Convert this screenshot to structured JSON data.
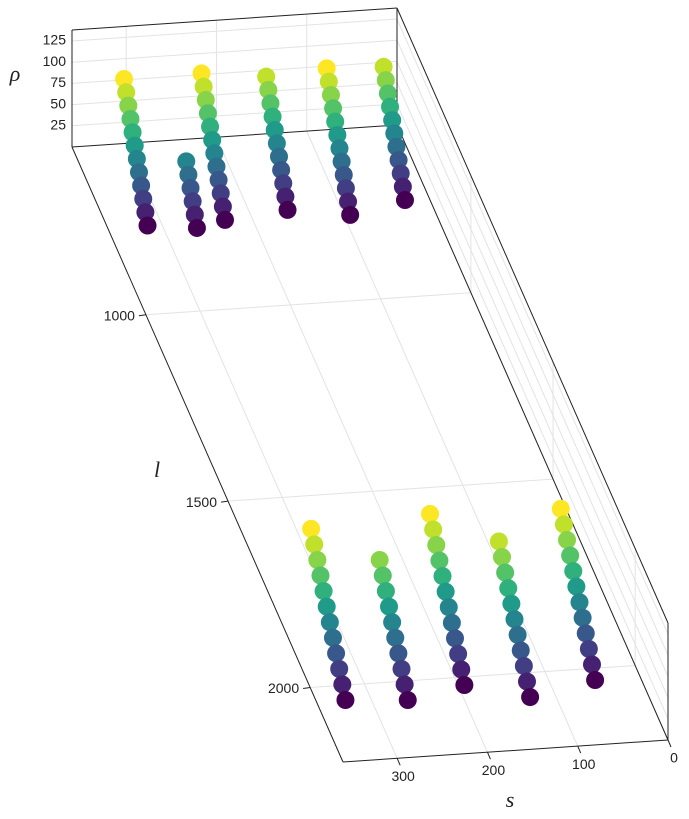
{
  "chart_data": {
    "type": "scatter3d",
    "xlabel": "s",
    "ylabel": "l",
    "zlabel": "ρ",
    "xlim": [
      0,
      360
    ],
    "ylim": [
      550,
      2200
    ],
    "zlim": [
      0,
      138
    ],
    "xticks": [
      0,
      100,
      200,
      300
    ],
    "yticks": [
      1000,
      1500,
      2000
    ],
    "zticks": [
      25,
      50,
      75,
      100,
      125
    ],
    "grid": true,
    "colormap": "viridis",
    "series": [
      {
        "x": [
          320,
          320,
          320,
          320,
          320,
          320,
          320,
          320,
          320,
          320,
          320,
          320
        ],
        "y": [
          790,
          777,
          764,
          751,
          738,
          725,
          712,
          699,
          686,
          673,
          660,
          647
        ],
        "z": [
          10,
          20,
          30,
          40,
          50,
          60,
          70,
          80,
          90,
          100,
          110,
          120
        ]
      },
      {
        "x": [
          268,
          268,
          268,
          268,
          268,
          268
        ],
        "y": [
          805,
          792,
          779,
          766,
          753,
          740
        ],
        "z": [
          10,
          20,
          30,
          40,
          50,
          60
        ]
      },
      {
        "x": [
          234,
          234,
          234,
          234,
          234,
          234,
          234,
          234,
          234,
          234,
          234,
          234
        ],
        "y": [
          789,
          776,
          763,
          750,
          737,
          724,
          711,
          698,
          685,
          672,
          659,
          646
        ],
        "z": [
          10,
          20,
          30,
          40,
          50,
          60,
          70,
          80,
          90,
          100,
          110,
          120
        ]
      },
      {
        "x": [
          162,
          162,
          162,
          162,
          162,
          162,
          162,
          162,
          162,
          162,
          162
        ],
        "y": [
          774,
          761,
          748,
          735,
          722,
          709,
          696,
          683,
          670,
          657,
          644
        ],
        "z": [
          10,
          20,
          30,
          40,
          50,
          60,
          70,
          80,
          90,
          100,
          110
        ]
      },
      {
        "x": [
          97,
          97,
          97,
          97,
          97,
          97,
          97,
          97,
          97,
          97,
          97,
          97
        ],
        "y": [
          798,
          785,
          772,
          759,
          746,
          733,
          720,
          707,
          694,
          681,
          668,
          655
        ],
        "z": [
          10,
          20,
          30,
          40,
          50,
          60,
          70,
          80,
          90,
          100,
          110,
          120
        ]
      },
      {
        "x": [
          31,
          31,
          31,
          31,
          31,
          31,
          31,
          31,
          31,
          31,
          31
        ],
        "y": [
          769,
          756,
          743,
          730,
          717,
          704,
          691,
          678,
          665,
          652,
          639
        ],
        "z": [
          10,
          20,
          30,
          40,
          50,
          60,
          70,
          80,
          90,
          100,
          110
        ]
      },
      {
        "x": [
          332,
          332,
          332,
          332,
          332,
          332,
          332,
          332,
          332,
          332,
          332,
          332
        ],
        "y": [
          2061,
          2042,
          2023,
          2004,
          1985,
          1966,
          1947,
          1928,
          1909,
          1890,
          1871,
          1852
        ],
        "z": [
          10,
          20,
          30,
          40,
          50,
          60,
          70,
          80,
          90,
          100,
          110,
          120
        ]
      },
      {
        "x": [
          265,
          265,
          265,
          265,
          265,
          265,
          265,
          265,
          265,
          265
        ],
        "y": [
          2072,
          2053,
          2034,
          2015,
          1996,
          1977,
          1958,
          1939,
          1920,
          1901
        ],
        "z": [
          10,
          20,
          30,
          40,
          50,
          60,
          70,
          80,
          90,
          100
        ]
      },
      {
        "x": [
          197,
          197,
          197,
          197,
          197,
          197,
          197,
          197,
          197,
          197,
          197,
          197
        ],
        "y": [
          2043,
          2024,
          2005,
          1986,
          1967,
          1948,
          1929,
          1910,
          1891,
          1872,
          1853,
          1834
        ],
        "z": [
          10,
          20,
          30,
          40,
          50,
          60,
          70,
          80,
          90,
          100,
          110,
          120
        ]
      },
      {
        "x": [
          132,
          132,
          132,
          132,
          132,
          132,
          132,
          132,
          132,
          132,
          132
        ],
        "y": [
          2086,
          2067,
          2048,
          2029,
          2010,
          1991,
          1972,
          1953,
          1934,
          1915,
          1896
        ],
        "z": [
          10,
          20,
          30,
          40,
          50,
          60,
          70,
          80,
          90,
          100,
          110
        ]
      },
      {
        "x": [
          54,
          54,
          54,
          54,
          54,
          54,
          54,
          54,
          54,
          54,
          54,
          54
        ],
        "y": [
          2053,
          2034,
          2015,
          1996,
          1977,
          1958,
          1939,
          1920,
          1901,
          1882,
          1863,
          1844
        ],
        "z": [
          10,
          20,
          30,
          40,
          50,
          60,
          70,
          80,
          90,
          100,
          110,
          120
        ]
      }
    ]
  }
}
